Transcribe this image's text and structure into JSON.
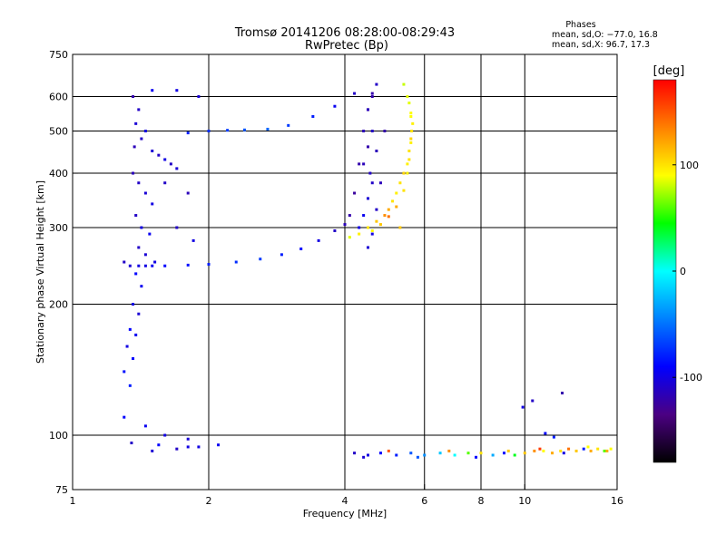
{
  "chart_data": {
    "type": "scatter",
    "title": "Tromsø 20141206 08:28:00-08:29:43",
    "subtitle": "RwPretec (Bp)",
    "xlabel": "Frequency [MHz]",
    "ylabel": "Stationary phase Virtual Height [km]",
    "x_scale": "log",
    "y_scale": "log",
    "xlim": [
      1,
      16
    ],
    "ylim": [
      75,
      750
    ],
    "x_ticks": [
      1,
      2,
      4,
      6,
      8,
      10,
      16
    ],
    "x_gridlines": [
      2,
      4,
      6,
      8,
      10
    ],
    "y_ticks": [
      75,
      100,
      200,
      300,
      400,
      500,
      600,
      750
    ],
    "y_gridlines": [
      100,
      200,
      300,
      400,
      500,
      600
    ],
    "grid": true,
    "phase_box": {
      "title": "Phases",
      "line_o": "mean, sd,O: −77.0, 16.8",
      "line_x": "mean, sd,X:  96.7, 17.3"
    },
    "colorbar": {
      "label": "[deg]",
      "range": [
        -180,
        180
      ],
      "ticks": [
        -100,
        0,
        100
      ],
      "colormap": [
        "#000000",
        "#4b0082",
        "#0000ff",
        "#0080ff",
        "#00ffff",
        "#00ff00",
        "#ffff00",
        "#ff8000",
        "#ff0000"
      ]
    },
    "series": [
      {
        "x": [
          1.36,
          1.4,
          1.38,
          1.45,
          1.42,
          1.37,
          1.5,
          1.55,
          1.6,
          1.65,
          1.7,
          1.8,
          2.0,
          2.2,
          2.4,
          2.7,
          3.0,
          3.4,
          3.8,
          4.2,
          1.36,
          1.4,
          1.45,
          1.5,
          1.38,
          1.42,
          1.48,
          1.4,
          1.45,
          1.52,
          1.38,
          1.42,
          1.36,
          1.4,
          1.34,
          1.38,
          1.32,
          1.36,
          1.3,
          1.34,
          1.3,
          1.34,
          1.4,
          1.45,
          1.5,
          1.6,
          1.8,
          2.0,
          2.3,
          2.6,
          2.9,
          3.2,
          3.5,
          3.8,
          4.0,
          4.1,
          4.2,
          4.3,
          4.4,
          4.5,
          4.6,
          4.3,
          4.4,
          4.5,
          4.6,
          4.4,
          4.5,
          4.6,
          4.5,
          4.6,
          4.7,
          4.5,
          4.6,
          4.7,
          4.8,
          4.55,
          4.7,
          4.9,
          1.5,
          1.7,
          1.9,
          1.6,
          1.8,
          1.7,
          1.85,
          1.3,
          1.45,
          1.6,
          1.8,
          1.35,
          1.55,
          1.8,
          1.5,
          1.7,
          1.9,
          2.1
        ],
        "y": [
          600,
          560,
          520,
          500,
          480,
          460,
          450,
          440,
          430,
          420,
          410,
          495,
          500,
          502,
          503,
          505,
          515,
          540,
          570,
          610,
          400,
          380,
          360,
          340,
          320,
          300,
          290,
          270,
          260,
          250,
          235,
          220,
          200,
          190,
          175,
          170,
          160,
          150,
          140,
          130,
          250,
          245,
          245,
          245,
          245,
          245,
          246,
          247,
          250,
          254,
          260,
          268,
          280,
          295,
          305,
          320,
          360,
          420,
          500,
          560,
          610,
          300,
          320,
          350,
          380,
          420,
          460,
          500,
          560,
          600,
          640,
          270,
          290,
          330,
          380,
          400,
          450,
          500,
          620,
          620,
          600,
          380,
          360,
          300,
          280,
          110,
          105,
          100,
          98,
          96,
          95,
          94,
          92,
          93,
          94,
          95
        ],
        "phase": [
          -120,
          -110,
          -105,
          -100,
          -110,
          -115,
          -105,
          -110,
          -100,
          -110,
          -105,
          -80,
          -75,
          -70,
          -60,
          -55,
          -70,
          -80,
          -95,
          -110,
          -115,
          -110,
          -105,
          -100,
          -110,
          -100,
          -95,
          -110,
          -105,
          -100,
          -90,
          -95,
          -100,
          -105,
          -90,
          -95,
          -100,
          -90,
          -85,
          -80,
          -110,
          -105,
          -100,
          -100,
          -95,
          -90,
          -85,
          -80,
          -75,
          -70,
          -80,
          -90,
          -100,
          -110,
          -115,
          -120,
          -125,
          -120,
          -115,
          -110,
          -120,
          -100,
          -95,
          -105,
          -110,
          -115,
          -120,
          -110,
          -115,
          -120,
          -110,
          -105,
          -100,
          -110,
          -115,
          -110,
          -115,
          -120,
          -95,
          -100,
          -105,
          -110,
          -115,
          -110,
          -100,
          -90,
          -95,
          -100,
          -105,
          -110,
          -90,
          -100,
          -105,
          -110,
          -100,
          -95
        ]
      },
      {
        "x": [
          4.1,
          4.3,
          4.5,
          4.7,
          4.9,
          5.0,
          5.1,
          5.2,
          5.3,
          5.4,
          5.5,
          5.55,
          5.6,
          5.62,
          5.65,
          5.6,
          5.5,
          5.4,
          4.6,
          4.8,
          5.0,
          5.2,
          5.4,
          5.3,
          5.5,
          5.55,
          5.6,
          5.6,
          5.55
        ],
        "y": [
          285,
          290,
          300,
          310,
          320,
          330,
          345,
          360,
          380,
          400,
          420,
          450,
          480,
          500,
          520,
          550,
          600,
          640,
          295,
          305,
          318,
          335,
          365,
          300,
          400,
          430,
          470,
          540,
          580
        ],
        "phase": [
          85,
          95,
          100,
          110,
          130,
          120,
          100,
          95,
          100,
          105,
          95,
          100,
          105,
          100,
          95,
          90,
          85,
          80,
          90,
          110,
          140,
          120,
          100,
          110,
          95,
          100,
          95,
          90,
          85
        ]
      },
      {
        "x": [
          4.2,
          4.5,
          4.8,
          5.2,
          5.6,
          6.0,
          6.5,
          7.0,
          7.5,
          8.0,
          8.5,
          9.0,
          9.5,
          10.0,
          10.5,
          11.0,
          11.5,
          12.0,
          12.5,
          13.0,
          13.5,
          14.0,
          14.5,
          15.0,
          15.5,
          4.4,
          5.0,
          5.8,
          6.8,
          7.8,
          9.2,
          10.8,
          12.2,
          13.8,
          15.2,
          9.9,
          10.4,
          11.1,
          11.6,
          12.1
        ],
        "y": [
          91,
          90,
          91,
          90,
          91,
          90,
          91,
          90,
          91,
          91,
          90,
          91,
          90,
          91,
          92,
          92,
          91,
          92,
          93,
          92,
          93,
          92,
          93,
          92,
          93,
          89,
          92,
          89,
          92,
          89,
          92,
          93,
          91,
          94,
          92,
          116,
          120,
          101,
          99,
          125
        ],
        "phase": [
          -110,
          -100,
          -90,
          -80,
          -60,
          -40,
          -20,
          0,
          60,
          100,
          -30,
          -90,
          40,
          110,
          130,
          90,
          120,
          100,
          140,
          110,
          -80,
          120,
          100,
          60,
          90,
          -105,
          150,
          -60,
          130,
          -90,
          110,
          160,
          -100,
          90,
          120,
          -100,
          -110,
          -90,
          -80,
          -120
        ]
      }
    ]
  }
}
